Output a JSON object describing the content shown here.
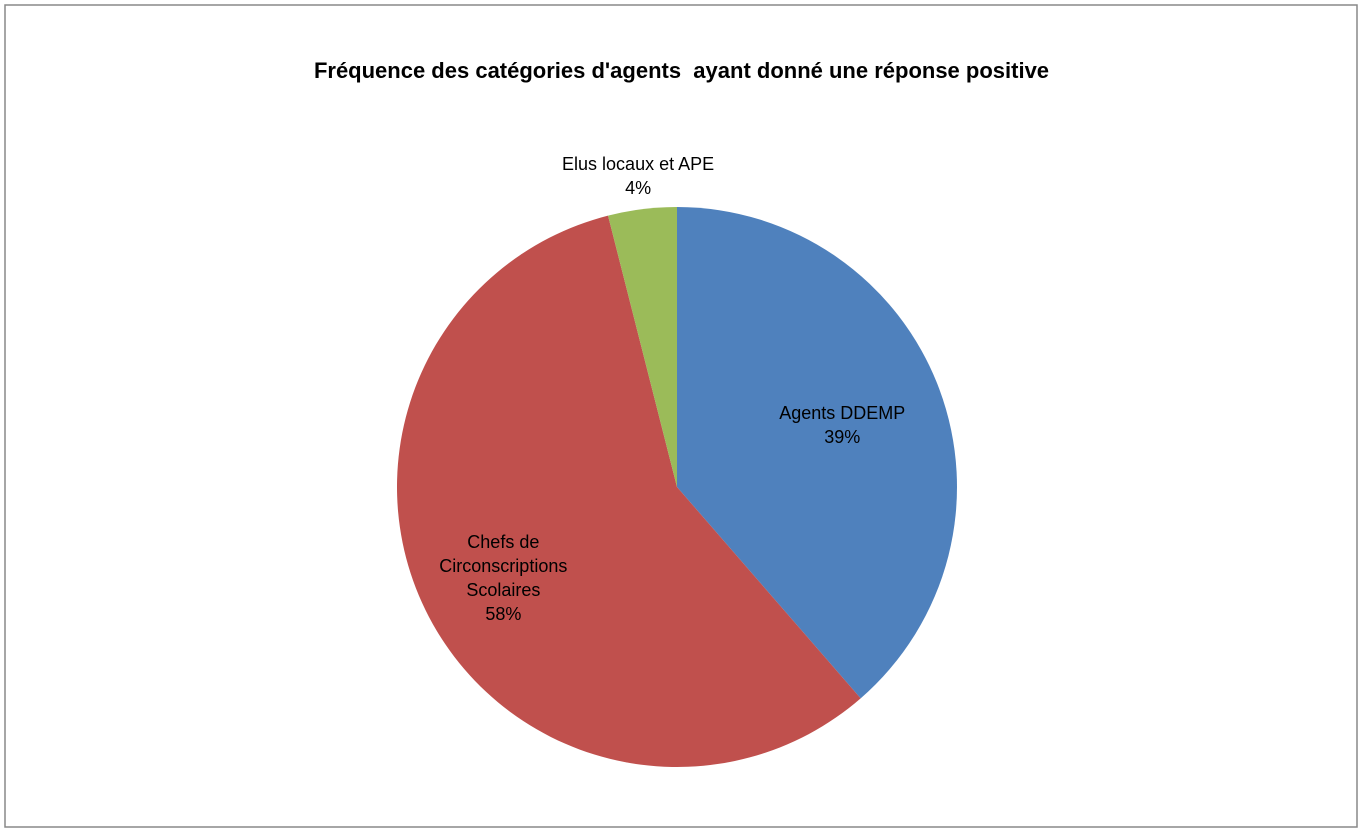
{
  "chart_data": {
    "type": "pie",
    "title": "Fréquence des catégories d'agents  ayant donné une réponse positive",
    "categories": [
      "Agents DDEMP",
      "Chefs de Circonscriptions Scolaires",
      "Elus locaux et APE"
    ],
    "values": [
      39,
      58,
      4
    ],
    "value_labels": [
      "39%",
      "58%",
      "4%"
    ],
    "colors": [
      "#4f81bd",
      "#c0504d",
      "#9bbb59"
    ]
  }
}
